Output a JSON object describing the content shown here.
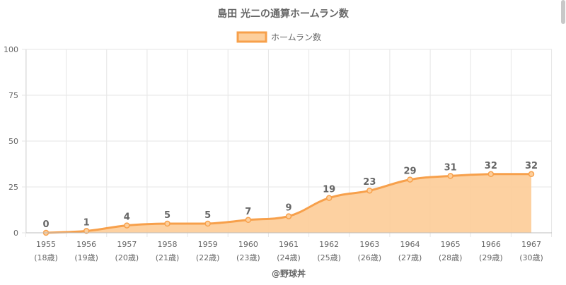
{
  "chart_data": {
    "type": "area",
    "title": "島田 光二の通算ホームラン数",
    "legend": {
      "label": "ホームラン数",
      "position": "top"
    },
    "x_labels": [
      "1955",
      "1956",
      "1957",
      "1958",
      "1959",
      "1960",
      "1961",
      "1962",
      "1963",
      "1964",
      "1965",
      "1966",
      "1967"
    ],
    "x_sublabels": [
      "(18歳)",
      "(19歳)",
      "(20歳)",
      "(21歳)",
      "(22歳)",
      "(23歳)",
      "(24歳)",
      "(25歳)",
      "(26歳)",
      "(27歳)",
      "(28歳)",
      "(29歳)",
      "(30歳)"
    ],
    "series": [
      {
        "name": "ホームラン数",
        "values": [
          0,
          1,
          4,
          5,
          5,
          7,
          9,
          19,
          23,
          29,
          31,
          32,
          32
        ]
      }
    ],
    "ylim": [
      0,
      100
    ],
    "yticks": [
      0,
      25,
      50,
      75,
      100
    ],
    "grid": true,
    "data_labels": true,
    "colors": {
      "line": "#f7a04b",
      "fill": "#fdcf9c",
      "grid": "#e6e6e6",
      "text": "#666666"
    }
  },
  "footer": {
    "credit": "@野球丼"
  }
}
